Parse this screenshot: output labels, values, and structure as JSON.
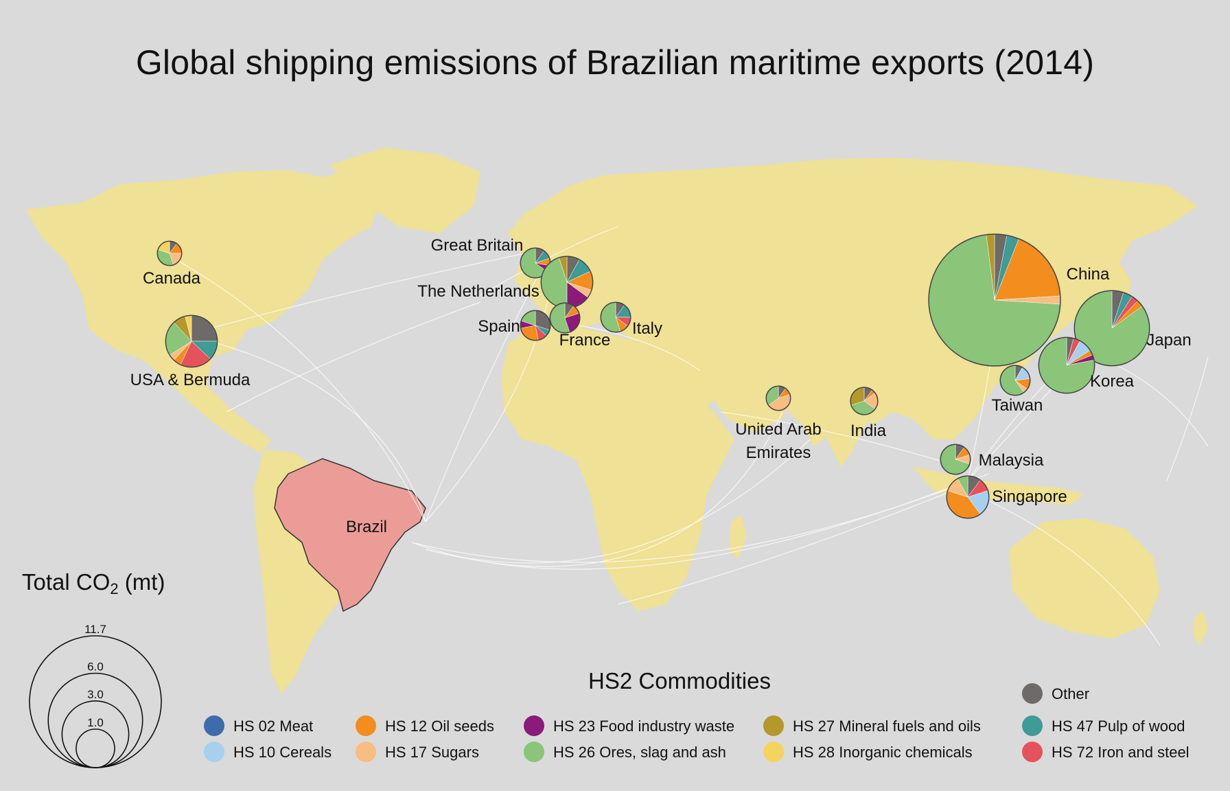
{
  "title": "Global shipping emissions of Brazilian maritime exports (2014)",
  "colors": {
    "ocean": "#dadada",
    "land": "#efe195",
    "brazil": "#ec9c96",
    "routes": "#ffffff"
  },
  "origin": {
    "name": "Brazil"
  },
  "commodities": [
    {
      "key": "meat",
      "label": "HS 02 Meat",
      "color": "#3e6bab"
    },
    {
      "key": "cereals",
      "label": "HS 10 Cereals",
      "color": "#a6d0ee"
    },
    {
      "key": "oilseeds",
      "label": "HS 12 Oil seeds",
      "color": "#f28d1e"
    },
    {
      "key": "sugars",
      "label": "HS 17 Sugars",
      "color": "#f7bd83"
    },
    {
      "key": "foodwaste",
      "label": "HS 23 Food industry waste",
      "color": "#8b1a7a"
    },
    {
      "key": "ores",
      "label": "HS 26 Ores, slag and ash",
      "color": "#8ac57a"
    },
    {
      "key": "mineral",
      "label": "HS 27 Mineral fuels and oils",
      "color": "#b4982b"
    },
    {
      "key": "inorganic",
      "label": "HS 28 Inorganic chemicals",
      "color": "#f3d45e"
    },
    {
      "key": "other",
      "label": "Other",
      "color": "#6e6a69"
    },
    {
      "key": "pulp",
      "label": "HS 47 Pulp of wood",
      "color": "#3f9b96"
    },
    {
      "key": "iron",
      "label": "HS 72 Iron and steel",
      "color": "#e4535c"
    }
  ],
  "legend": {
    "title": "HS2 Commodities",
    "size_title_main": "Total CO",
    "size_title_sub": "2",
    "size_title_unit": " (mt)",
    "size_values": [
      "11.7",
      "6.0",
      "3.0",
      "1.0"
    ]
  },
  "destinations": [
    {
      "name": "Canada",
      "total": 0.4,
      "shares": {
        "other": 0.1,
        "oilseeds": 0.15,
        "sugars": 0.2,
        "inorganic": 0.2,
        "ores": 0.35
      }
    },
    {
      "name": "USA & Bermuda",
      "total": 1.8,
      "shares": {
        "other": 0.25,
        "ores": 0.22,
        "iron": 0.2,
        "pulp": 0.12,
        "mineral": 0.08,
        "oilseeds": 0.05,
        "sugars": 0.04,
        "inorganic": 0.04
      }
    },
    {
      "name": "Great Britain",
      "total": 0.6,
      "shares": {
        "ores": 0.65,
        "other": 0.1,
        "pulp": 0.1,
        "oilseeds": 0.08,
        "foodwaste": 0.07
      }
    },
    {
      "name": "The Netherlands",
      "total": 1.8,
      "shares": {
        "ores": 0.45,
        "foodwaste": 0.15,
        "oilseeds": 0.12,
        "pulp": 0.1,
        "other": 0.08,
        "mineral": 0.05,
        "sugars": 0.05
      }
    },
    {
      "name": "Spain",
      "total": 0.6,
      "shares": {
        "other": 0.3,
        "oilseeds": 0.25,
        "ores": 0.2,
        "iron": 0.1,
        "foodwaste": 0.08,
        "pulp": 0.07
      }
    },
    {
      "name": "France",
      "total": 0.6,
      "shares": {
        "ores": 0.55,
        "foodwaste": 0.25,
        "oilseeds": 0.1,
        "other": 0.1
      }
    },
    {
      "name": "Italy",
      "total": 0.6,
      "shares": {
        "ores": 0.55,
        "pulp": 0.15,
        "oilseeds": 0.1,
        "iron": 0.1,
        "other": 0.1
      }
    },
    {
      "name": "China",
      "total": 11.7,
      "shares": {
        "ores": 0.72,
        "oilseeds": 0.18,
        "sugars": 0.02,
        "mineral": 0.02,
        "pulp": 0.03,
        "other": 0.03
      }
    },
    {
      "name": "Japan",
      "total": 3.8,
      "shares": {
        "ores": 0.85,
        "other": 0.05,
        "iron": 0.03,
        "oilseeds": 0.03,
        "pulp": 0.04
      }
    },
    {
      "name": "Korea",
      "total": 2.1,
      "shares": {
        "ores": 0.78,
        "cereals": 0.08,
        "other": 0.04,
        "iron": 0.04,
        "foodwaste": 0.03,
        "oilseeds": 0.03
      }
    },
    {
      "name": "Taiwan",
      "total": 0.6,
      "shares": {
        "ores": 0.6,
        "cereals": 0.15,
        "oilseeds": 0.12,
        "other": 0.08,
        "sugars": 0.05
      }
    },
    {
      "name": "United Arab Emirates",
      "total": 0.4,
      "shares": {
        "sugars": 0.45,
        "ores": 0.35,
        "oilseeds": 0.1,
        "other": 0.1
      }
    },
    {
      "name": "India",
      "total": 0.5,
      "shares": {
        "mineral": 0.3,
        "ores": 0.35,
        "sugars": 0.2,
        "other": 0.1,
        "oilseeds": 0.05
      }
    },
    {
      "name": "Malaysia",
      "total": 0.6,
      "shares": {
        "ores": 0.7,
        "sugars": 0.1,
        "oilseeds": 0.1,
        "other": 0.1
      }
    },
    {
      "name": "Singapore",
      "total": 1.2,
      "shares": {
        "oilseeds": 0.4,
        "cereals": 0.2,
        "sugars": 0.12,
        "iron": 0.1,
        "other": 0.1,
        "ores": 0.08
      }
    }
  ]
}
